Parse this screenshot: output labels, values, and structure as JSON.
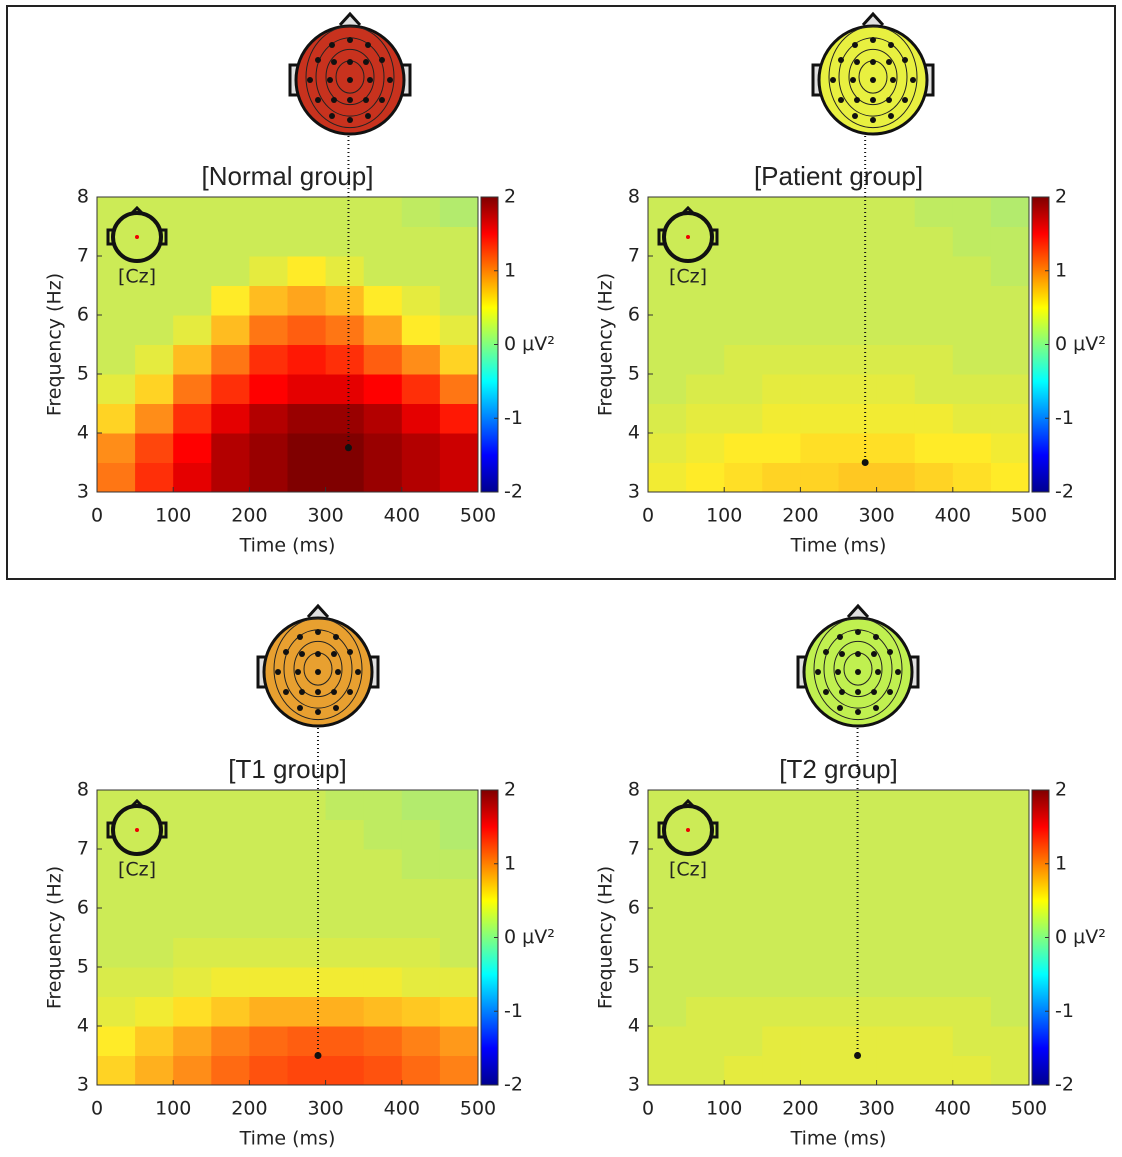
{
  "chart_data": [
    {
      "type": "heatmap",
      "title": "[Normal group]",
      "xlabel": "Time (ms)",
      "ylabel": "Frequency (Hz)",
      "annotation": "[Cz]",
      "xlim": [
        0,
        500
      ],
      "ylim": [
        3,
        8
      ],
      "xticks": [
        0,
        100,
        200,
        300,
        400,
        500
      ],
      "yticks": [
        3,
        4,
        5,
        6,
        7,
        8
      ],
      "clim": [
        -2,
        2
      ],
      "cticks": [
        -2,
        -1,
        {
          "value": 0,
          "label": "0 μV²"
        },
        1,
        2
      ],
      "colormap": "jet",
      "topo_color": "#c8321e",
      "peak": {
        "x": 330,
        "y": 3.75
      },
      "x": [
        25,
        75,
        125,
        175,
        225,
        275,
        325,
        375,
        425,
        475
      ],
      "y": [
        3.25,
        3.75,
        4.25,
        4.75,
        5.25,
        5.75,
        6.25,
        6.75,
        7.25,
        7.75
      ],
      "z": [
        [
          1.0,
          1.3,
          1.6,
          1.8,
          1.9,
          2.0,
          2.0,
          1.9,
          1.8,
          1.7
        ],
        [
          0.9,
          1.2,
          1.5,
          1.8,
          1.9,
          2.0,
          2.0,
          1.9,
          1.8,
          1.7
        ],
        [
          0.6,
          0.9,
          1.3,
          1.6,
          1.8,
          1.9,
          1.9,
          1.8,
          1.6,
          1.4
        ],
        [
          0.4,
          0.6,
          1.0,
          1.3,
          1.5,
          1.6,
          1.6,
          1.5,
          1.3,
          1.0
        ],
        [
          0.3,
          0.4,
          0.7,
          1.0,
          1.3,
          1.4,
          1.3,
          1.1,
          0.9,
          0.6
        ],
        [
          0.3,
          0.3,
          0.4,
          0.7,
          1.0,
          1.1,
          1.0,
          0.8,
          0.5,
          0.4
        ],
        [
          0.3,
          0.3,
          0.3,
          0.5,
          0.7,
          0.8,
          0.7,
          0.5,
          0.4,
          0.3
        ],
        [
          0.3,
          0.3,
          0.3,
          0.3,
          0.4,
          0.5,
          0.4,
          0.3,
          0.3,
          0.3
        ],
        [
          0.3,
          0.3,
          0.3,
          0.3,
          0.3,
          0.3,
          0.3,
          0.3,
          0.3,
          0.3
        ],
        [
          0.3,
          0.3,
          0.3,
          0.3,
          0.3,
          0.3,
          0.3,
          0.3,
          0.25,
          0.2
        ]
      ]
    },
    {
      "type": "heatmap",
      "title": "[Patient group]",
      "xlabel": "Time (ms)",
      "ylabel": "Frequency (Hz)",
      "annotation": "[Cz]",
      "xlim": [
        0,
        500
      ],
      "ylim": [
        3,
        8
      ],
      "xticks": [
        0,
        100,
        200,
        300,
        400,
        500
      ],
      "yticks": [
        3,
        4,
        5,
        6,
        7,
        8
      ],
      "clim": [
        -2,
        2
      ],
      "cticks": [
        -2,
        -1,
        {
          "value": 0,
          "label": "0 μV²"
        },
        1,
        2
      ],
      "colormap": "jet",
      "topo_color": "#e8f040",
      "peak": {
        "x": 285,
        "y": 3.5
      },
      "x": [
        25,
        75,
        125,
        175,
        225,
        275,
        325,
        375,
        425,
        475
      ],
      "y": [
        3.25,
        3.75,
        4.25,
        4.75,
        5.25,
        5.75,
        6.25,
        6.75,
        7.25,
        7.75
      ],
      "z": [
        [
          0.45,
          0.5,
          0.55,
          0.6,
          0.6,
          0.65,
          0.65,
          0.6,
          0.55,
          0.5
        ],
        [
          0.4,
          0.45,
          0.5,
          0.5,
          0.55,
          0.55,
          0.55,
          0.5,
          0.5,
          0.45
        ],
        [
          0.35,
          0.4,
          0.4,
          0.45,
          0.45,
          0.45,
          0.45,
          0.45,
          0.4,
          0.4
        ],
        [
          0.3,
          0.35,
          0.35,
          0.4,
          0.4,
          0.4,
          0.4,
          0.35,
          0.35,
          0.35
        ],
        [
          0.3,
          0.3,
          0.35,
          0.35,
          0.35,
          0.35,
          0.35,
          0.35,
          0.3,
          0.3
        ],
        [
          0.3,
          0.3,
          0.3,
          0.3,
          0.3,
          0.3,
          0.3,
          0.3,
          0.3,
          0.3
        ],
        [
          0.3,
          0.3,
          0.3,
          0.3,
          0.3,
          0.3,
          0.3,
          0.3,
          0.3,
          0.3
        ],
        [
          0.3,
          0.3,
          0.3,
          0.3,
          0.3,
          0.3,
          0.3,
          0.3,
          0.3,
          0.25
        ],
        [
          0.3,
          0.3,
          0.3,
          0.3,
          0.3,
          0.3,
          0.3,
          0.3,
          0.25,
          0.25
        ],
        [
          0.3,
          0.3,
          0.3,
          0.3,
          0.3,
          0.3,
          0.3,
          0.25,
          0.25,
          0.2
        ]
      ]
    },
    {
      "type": "heatmap",
      "title": "[T1 group]",
      "xlabel": "Time (ms)",
      "ylabel": "Frequency (Hz)",
      "annotation": "[Cz]",
      "xlim": [
        0,
        500
      ],
      "ylim": [
        3,
        8
      ],
      "xticks": [
        0,
        100,
        200,
        300,
        400,
        500
      ],
      "yticks": [
        3,
        4,
        5,
        6,
        7,
        8
      ],
      "clim": [
        -2,
        2
      ],
      "cticks": [
        -2,
        -1,
        {
          "value": 0,
          "label": "0 μV²"
        },
        1,
        2
      ],
      "colormap": "jet",
      "topo_color": "#e8a030",
      "peak": {
        "x": 290,
        "y": 3.5
      },
      "x": [
        25,
        75,
        125,
        175,
        225,
        275,
        325,
        375,
        425,
        475
      ],
      "y": [
        3.25,
        3.75,
        4.25,
        4.75,
        5.25,
        5.75,
        6.25,
        6.75,
        7.25,
        7.75
      ],
      "z": [
        [
          0.6,
          0.75,
          0.9,
          1.05,
          1.15,
          1.2,
          1.2,
          1.15,
          1.05,
          0.95
        ],
        [
          0.5,
          0.65,
          0.8,
          0.95,
          1.05,
          1.1,
          1.1,
          1.05,
          0.95,
          0.85
        ],
        [
          0.4,
          0.45,
          0.55,
          0.65,
          0.75,
          0.75,
          0.75,
          0.7,
          0.65,
          0.6
        ],
        [
          0.35,
          0.35,
          0.4,
          0.45,
          0.45,
          0.45,
          0.45,
          0.45,
          0.4,
          0.4
        ],
        [
          0.3,
          0.3,
          0.35,
          0.35,
          0.35,
          0.35,
          0.35,
          0.35,
          0.35,
          0.3
        ],
        [
          0.3,
          0.3,
          0.3,
          0.3,
          0.3,
          0.3,
          0.3,
          0.3,
          0.3,
          0.3
        ],
        [
          0.3,
          0.3,
          0.3,
          0.3,
          0.3,
          0.3,
          0.3,
          0.3,
          0.3,
          0.3
        ],
        [
          0.3,
          0.3,
          0.3,
          0.3,
          0.3,
          0.3,
          0.3,
          0.3,
          0.25,
          0.25
        ],
        [
          0.3,
          0.3,
          0.3,
          0.3,
          0.3,
          0.3,
          0.3,
          0.25,
          0.25,
          0.2
        ],
        [
          0.3,
          0.3,
          0.3,
          0.3,
          0.3,
          0.3,
          0.25,
          0.25,
          0.2,
          0.2
        ]
      ]
    },
    {
      "type": "heatmap",
      "title": "[T2 group]",
      "xlabel": "Time (ms)",
      "ylabel": "Frequency (Hz)",
      "annotation": "[Cz]",
      "xlim": [
        0,
        500
      ],
      "ylim": [
        3,
        8
      ],
      "xticks": [
        0,
        100,
        200,
        300,
        400,
        500
      ],
      "yticks": [
        3,
        4,
        5,
        6,
        7,
        8
      ],
      "clim": [
        -2,
        2
      ],
      "cticks": [
        -2,
        -1,
        {
          "value": 0,
          "label": "0 μV²"
        },
        1,
        2
      ],
      "colormap": "jet",
      "topo_color": "#c0f050",
      "peak": {
        "x": 275,
        "y": 3.5
      },
      "x": [
        25,
        75,
        125,
        175,
        225,
        275,
        325,
        375,
        425,
        475
      ],
      "y": [
        3.25,
        3.75,
        4.25,
        4.75,
        5.25,
        5.75,
        6.25,
        6.75,
        7.25,
        7.75
      ],
      "z": [
        [
          0.35,
          0.35,
          0.4,
          0.4,
          0.4,
          0.4,
          0.4,
          0.4,
          0.4,
          0.35
        ],
        [
          0.35,
          0.35,
          0.35,
          0.4,
          0.4,
          0.4,
          0.4,
          0.4,
          0.35,
          0.35
        ],
        [
          0.3,
          0.35,
          0.35,
          0.35,
          0.35,
          0.35,
          0.35,
          0.35,
          0.35,
          0.3
        ],
        [
          0.3,
          0.3,
          0.3,
          0.3,
          0.3,
          0.3,
          0.3,
          0.3,
          0.3,
          0.3
        ],
        [
          0.3,
          0.3,
          0.3,
          0.3,
          0.3,
          0.3,
          0.3,
          0.3,
          0.3,
          0.3
        ],
        [
          0.3,
          0.3,
          0.3,
          0.3,
          0.3,
          0.3,
          0.3,
          0.3,
          0.3,
          0.3
        ],
        [
          0.3,
          0.3,
          0.3,
          0.3,
          0.3,
          0.3,
          0.3,
          0.3,
          0.3,
          0.3
        ],
        [
          0.3,
          0.3,
          0.3,
          0.3,
          0.3,
          0.3,
          0.3,
          0.3,
          0.3,
          0.3
        ],
        [
          0.3,
          0.3,
          0.3,
          0.3,
          0.3,
          0.3,
          0.3,
          0.3,
          0.3,
          0.3
        ],
        [
          0.3,
          0.3,
          0.3,
          0.3,
          0.3,
          0.3,
          0.3,
          0.3,
          0.3,
          0.3
        ]
      ]
    }
  ]
}
